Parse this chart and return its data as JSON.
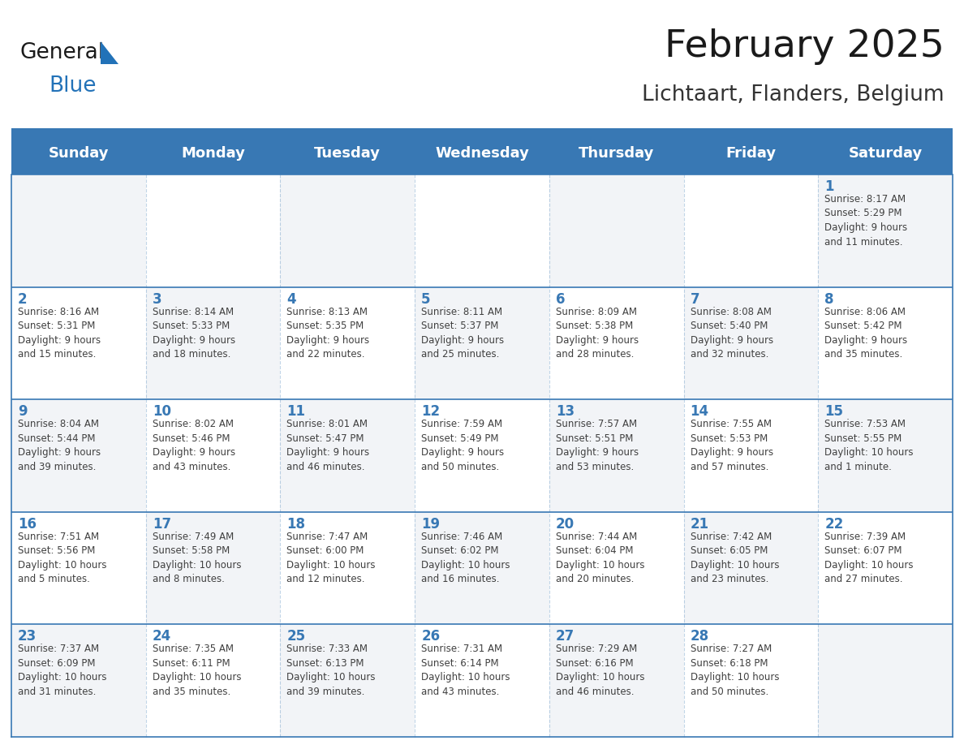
{
  "title": "February 2025",
  "subtitle": "Lichtaart, Flanders, Belgium",
  "days_of_week": [
    "Sunday",
    "Monday",
    "Tuesday",
    "Wednesday",
    "Thursday",
    "Friday",
    "Saturday"
  ],
  "header_bg": "#3878b4",
  "header_text_color": "#ffffff",
  "cell_border_color": "#3878b4",
  "day_number_color": "#3878b4",
  "text_color": "#404040",
  "title_color": "#1a1a1a",
  "subtitle_color": "#333333",
  "logo_general_color": "#1a1a1a",
  "logo_blue_color": "#2272b8",
  "cell_bg_light": "#f2f4f7",
  "cell_bg_white": "#ffffff",
  "weeks": [
    [
      {
        "day": null,
        "info": null
      },
      {
        "day": null,
        "info": null
      },
      {
        "day": null,
        "info": null
      },
      {
        "day": null,
        "info": null
      },
      {
        "day": null,
        "info": null
      },
      {
        "day": null,
        "info": null
      },
      {
        "day": 1,
        "info": "Sunrise: 8:17 AM\nSunset: 5:29 PM\nDaylight: 9 hours\nand 11 minutes."
      }
    ],
    [
      {
        "day": 2,
        "info": "Sunrise: 8:16 AM\nSunset: 5:31 PM\nDaylight: 9 hours\nand 15 minutes."
      },
      {
        "day": 3,
        "info": "Sunrise: 8:14 AM\nSunset: 5:33 PM\nDaylight: 9 hours\nand 18 minutes."
      },
      {
        "day": 4,
        "info": "Sunrise: 8:13 AM\nSunset: 5:35 PM\nDaylight: 9 hours\nand 22 minutes."
      },
      {
        "day": 5,
        "info": "Sunrise: 8:11 AM\nSunset: 5:37 PM\nDaylight: 9 hours\nand 25 minutes."
      },
      {
        "day": 6,
        "info": "Sunrise: 8:09 AM\nSunset: 5:38 PM\nDaylight: 9 hours\nand 28 minutes."
      },
      {
        "day": 7,
        "info": "Sunrise: 8:08 AM\nSunset: 5:40 PM\nDaylight: 9 hours\nand 32 minutes."
      },
      {
        "day": 8,
        "info": "Sunrise: 8:06 AM\nSunset: 5:42 PM\nDaylight: 9 hours\nand 35 minutes."
      }
    ],
    [
      {
        "day": 9,
        "info": "Sunrise: 8:04 AM\nSunset: 5:44 PM\nDaylight: 9 hours\nand 39 minutes."
      },
      {
        "day": 10,
        "info": "Sunrise: 8:02 AM\nSunset: 5:46 PM\nDaylight: 9 hours\nand 43 minutes."
      },
      {
        "day": 11,
        "info": "Sunrise: 8:01 AM\nSunset: 5:47 PM\nDaylight: 9 hours\nand 46 minutes."
      },
      {
        "day": 12,
        "info": "Sunrise: 7:59 AM\nSunset: 5:49 PM\nDaylight: 9 hours\nand 50 minutes."
      },
      {
        "day": 13,
        "info": "Sunrise: 7:57 AM\nSunset: 5:51 PM\nDaylight: 9 hours\nand 53 minutes."
      },
      {
        "day": 14,
        "info": "Sunrise: 7:55 AM\nSunset: 5:53 PM\nDaylight: 9 hours\nand 57 minutes."
      },
      {
        "day": 15,
        "info": "Sunrise: 7:53 AM\nSunset: 5:55 PM\nDaylight: 10 hours\nand 1 minute."
      }
    ],
    [
      {
        "day": 16,
        "info": "Sunrise: 7:51 AM\nSunset: 5:56 PM\nDaylight: 10 hours\nand 5 minutes."
      },
      {
        "day": 17,
        "info": "Sunrise: 7:49 AM\nSunset: 5:58 PM\nDaylight: 10 hours\nand 8 minutes."
      },
      {
        "day": 18,
        "info": "Sunrise: 7:47 AM\nSunset: 6:00 PM\nDaylight: 10 hours\nand 12 minutes."
      },
      {
        "day": 19,
        "info": "Sunrise: 7:46 AM\nSunset: 6:02 PM\nDaylight: 10 hours\nand 16 minutes."
      },
      {
        "day": 20,
        "info": "Sunrise: 7:44 AM\nSunset: 6:04 PM\nDaylight: 10 hours\nand 20 minutes."
      },
      {
        "day": 21,
        "info": "Sunrise: 7:42 AM\nSunset: 6:05 PM\nDaylight: 10 hours\nand 23 minutes."
      },
      {
        "day": 22,
        "info": "Sunrise: 7:39 AM\nSunset: 6:07 PM\nDaylight: 10 hours\nand 27 minutes."
      }
    ],
    [
      {
        "day": 23,
        "info": "Sunrise: 7:37 AM\nSunset: 6:09 PM\nDaylight: 10 hours\nand 31 minutes."
      },
      {
        "day": 24,
        "info": "Sunrise: 7:35 AM\nSunset: 6:11 PM\nDaylight: 10 hours\nand 35 minutes."
      },
      {
        "day": 25,
        "info": "Sunrise: 7:33 AM\nSunset: 6:13 PM\nDaylight: 10 hours\nand 39 minutes."
      },
      {
        "day": 26,
        "info": "Sunrise: 7:31 AM\nSunset: 6:14 PM\nDaylight: 10 hours\nand 43 minutes."
      },
      {
        "day": 27,
        "info": "Sunrise: 7:29 AM\nSunset: 6:16 PM\nDaylight: 10 hours\nand 46 minutes."
      },
      {
        "day": 28,
        "info": "Sunrise: 7:27 AM\nSunset: 6:18 PM\nDaylight: 10 hours\nand 50 minutes."
      },
      {
        "day": null,
        "info": null
      }
    ]
  ]
}
